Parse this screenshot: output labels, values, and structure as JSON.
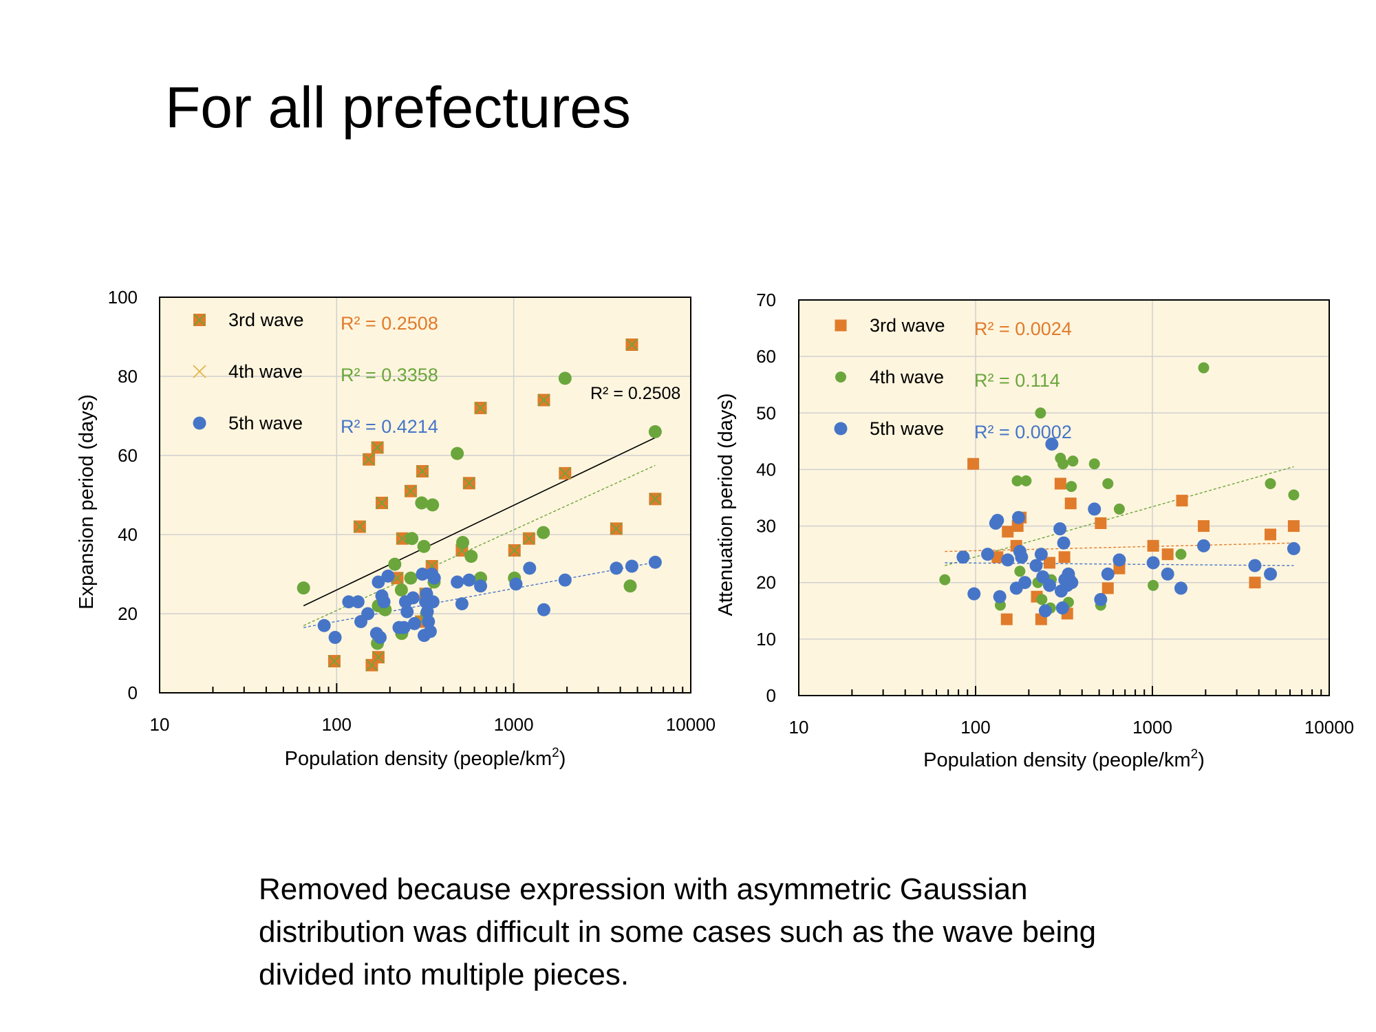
{
  "slide": {
    "title": "For all prefectures",
    "note_lines": [
      "Removed because expression with asymmetric Gaussian",
      "distribution was difficult in some cases such as the wave being",
      "divided into multiple pieces."
    ]
  },
  "colors": {
    "plot_bg": "#fef5de",
    "wave3": "#e07b2b",
    "wave4": "#6aa63c",
    "wave5": "#4675c8",
    "grid": "#d0d0d0",
    "axis": "#000000"
  },
  "chart_data": [
    {
      "type": "scatter",
      "xscale": "log",
      "xlim": [
        10,
        10000
      ],
      "ylim": [
        0,
        100
      ],
      "yticks": [
        0,
        20,
        40,
        60,
        80,
        100
      ],
      "xticks": [
        10,
        100,
        1000,
        10000
      ],
      "xtick_labels": [
        "10",
        "100",
        "1000",
        "10000"
      ],
      "xlabel": "Population density (people/km",
      "xlabel_sup": "2",
      "xlabel_end": ")",
      "ylabel": "Expansion period (days)",
      "grid": true,
      "legend_position": "top-left",
      "series": [
        {
          "name": "3rd wave",
          "marker": "square-x",
          "color": "#e07b2b",
          "r2_label": "R² = 0.2508",
          "points": [
            [
              97,
              8
            ],
            [
              135,
              42
            ],
            [
              152,
              59
            ],
            [
              158,
              7
            ],
            [
              170,
              62
            ],
            [
              172,
              9
            ],
            [
              180,
              48
            ],
            [
              220,
              29
            ],
            [
              235,
              39
            ],
            [
              262,
              51
            ],
            [
              300,
              18
            ],
            [
              305,
              56
            ],
            [
              318,
              25
            ],
            [
              345,
              32
            ],
            [
              510,
              36
            ],
            [
              560,
              53
            ],
            [
              650,
              72
            ],
            [
              1010,
              36
            ],
            [
              1220,
              39
            ],
            [
              1480,
              74
            ],
            [
              1950,
              55.5
            ],
            [
              3800,
              41.5
            ],
            [
              4650,
              88
            ],
            [
              6300,
              49
            ]
          ]
        },
        {
          "name": "4th wave",
          "marker": "x",
          "color": "#6aa63c",
          "r2_label": "R² = 0.3358",
          "points": [
            [
              65,
              26.5
            ],
            [
              170,
              12.5
            ],
            [
              172,
              22
            ],
            [
              188,
              21
            ],
            [
              213,
              32.5
            ],
            [
              232,
              26
            ],
            [
              233,
              15
            ],
            [
              262,
              29
            ],
            [
              266,
              39
            ],
            [
              302,
              48
            ],
            [
              311,
              37
            ],
            [
              322,
              20
            ],
            [
              348,
              47.5
            ],
            [
              355,
              28
            ],
            [
              480,
              60.5
            ],
            [
              515,
              38
            ],
            [
              575,
              34.5
            ],
            [
              650,
              29
            ],
            [
              1010,
              29
            ],
            [
              1470,
              40.5
            ],
            [
              1950,
              79.5
            ],
            [
              4550,
              27
            ],
            [
              6300,
              66
            ]
          ]
        },
        {
          "name": "5th wave",
          "marker": "circle",
          "color": "#4675c8",
          "r2_label": "R² = 0.4214",
          "points": [
            [
              85,
              17
            ],
            [
              98,
              14
            ],
            [
              117,
              23
            ],
            [
              132,
              23
            ],
            [
              137,
              18
            ],
            [
              150,
              20
            ],
            [
              168,
              15
            ],
            [
              172,
              28
            ],
            [
              176,
              14
            ],
            [
              180,
              24.5
            ],
            [
              185,
              23
            ],
            [
              195,
              29.5
            ],
            [
              225,
              16.5
            ],
            [
              240,
              16.5
            ],
            [
              245,
              23
            ],
            [
              250,
              20.5
            ],
            [
              270,
              24
            ],
            [
              275,
              17.5
            ],
            [
              305,
              30
            ],
            [
              312,
              14.5
            ],
            [
              318,
              23
            ],
            [
              322,
              25
            ],
            [
              325,
              20.5
            ],
            [
              330,
              18
            ],
            [
              338,
              15.5
            ],
            [
              345,
              30
            ],
            [
              350,
              23
            ],
            [
              356,
              29
            ],
            [
              480,
              28
            ],
            [
              510,
              22.5
            ],
            [
              560,
              28.5
            ],
            [
              650,
              27
            ],
            [
              1030,
              27.5
            ],
            [
              1230,
              31.5
            ],
            [
              1480,
              21
            ],
            [
              1950,
              28.5
            ],
            [
              3800,
              31.5
            ],
            [
              4650,
              32
            ],
            [
              6300,
              33
            ]
          ]
        }
      ],
      "trendlines": [
        {
          "series": "3rd wave",
          "color": "#000000",
          "style": "solid",
          "from": [
            65,
            22
          ],
          "to": [
            6300,
            64.5
          ],
          "label": "R² = 0.2508"
        },
        {
          "series": "4th wave",
          "color": "#6aa63c",
          "style": "dashed",
          "from": [
            65,
            17
          ],
          "to": [
            6300,
            57.5
          ]
        },
        {
          "series": "5th wave",
          "color": "#4675c8",
          "style": "dashed",
          "from": [
            65,
            16.5
          ],
          "to": [
            6300,
            33
          ]
        }
      ]
    },
    {
      "type": "scatter",
      "xscale": "log",
      "xlim": [
        10,
        10000
      ],
      "ylim": [
        0,
        70
      ],
      "yticks": [
        0,
        10,
        20,
        30,
        40,
        50,
        60,
        70
      ],
      "xticks": [
        10,
        100,
        1000,
        10000
      ],
      "xtick_labels": [
        "10",
        "100",
        "1000",
        "10000"
      ],
      "xlabel": "Population density (people/km",
      "xlabel_sup": "2",
      "xlabel_end": ")",
      "ylabel": "Attenuation period (days)",
      "grid": true,
      "legend_position": "top-left",
      "series": [
        {
          "name": "3rd wave",
          "marker": "square",
          "color": "#e07b2b",
          "r2_label": "R² = 0.0024",
          "points": [
            [
              97,
              41
            ],
            [
              133,
              24.5
            ],
            [
              150,
              13.5
            ],
            [
              152,
              29
            ],
            [
              170,
              26.5
            ],
            [
              173,
              30
            ],
            [
              180,
              31.5
            ],
            [
              222,
              17.5
            ],
            [
              235,
              13.5
            ],
            [
              262,
              23.5
            ],
            [
              302,
              37.5
            ],
            [
              318,
              24.5
            ],
            [
              330,
              14.5
            ],
            [
              345,
              34
            ],
            [
              510,
              30.5
            ],
            [
              560,
              19
            ],
            [
              650,
              22.5
            ],
            [
              1010,
              26.5
            ],
            [
              1220,
              25
            ],
            [
              1470,
              34.5
            ],
            [
              1950,
              30
            ],
            [
              3800,
              20
            ],
            [
              4650,
              28.5
            ],
            [
              6300,
              30
            ]
          ]
        },
        {
          "name": "4th wave",
          "marker": "circle",
          "color": "#6aa63c",
          "r2_label": "R² = 0.114",
          "points": [
            [
              67,
              20.5
            ],
            [
              138,
              16
            ],
            [
              172,
              38
            ],
            [
              178,
              22
            ],
            [
              193,
              38
            ],
            [
              225,
              20
            ],
            [
              233,
              50
            ],
            [
              237,
              17
            ],
            [
              265,
              15.5
            ],
            [
              268,
              20.5
            ],
            [
              302,
              42
            ],
            [
              312,
              41
            ],
            [
              335,
              16.5
            ],
            [
              348,
              37
            ],
            [
              355,
              41.5
            ],
            [
              470,
              41
            ],
            [
              510,
              16
            ],
            [
              560,
              37.5
            ],
            [
              650,
              33
            ],
            [
              1010,
              19.5
            ],
            [
              1450,
              25
            ],
            [
              1950,
              58
            ],
            [
              4650,
              37.5
            ],
            [
              6300,
              35.5
            ]
          ]
        },
        {
          "name": "5th wave",
          "marker": "circle",
          "color": "#4675c8",
          "r2_label": "R² = 0.0002",
          "points": [
            [
              85,
              24.5
            ],
            [
              98,
              18
            ],
            [
              117,
              25
            ],
            [
              130,
              30.5
            ],
            [
              133,
              31
            ],
            [
              137,
              17.5
            ],
            [
              152,
              24
            ],
            [
              170,
              19
            ],
            [
              175,
              31.5
            ],
            [
              178,
              25.5
            ],
            [
              182,
              24.5
            ],
            [
              190,
              20
            ],
            [
              220,
              23
            ],
            [
              235,
              25
            ],
            [
              240,
              21
            ],
            [
              248,
              15
            ],
            [
              262,
              19.5
            ],
            [
              270,
              44.5
            ],
            [
              300,
              29.5
            ],
            [
              305,
              18.5
            ],
            [
              310,
              15.5
            ],
            [
              315,
              27
            ],
            [
              320,
              20.5
            ],
            [
              330,
              19.5
            ],
            [
              335,
              21.5
            ],
            [
              340,
              20.5
            ],
            [
              350,
              20
            ],
            [
              470,
              33
            ],
            [
              510,
              17
            ],
            [
              560,
              21.5
            ],
            [
              650,
              24
            ],
            [
              1010,
              23.5
            ],
            [
              1220,
              21.5
            ],
            [
              1450,
              19
            ],
            [
              1950,
              26.5
            ],
            [
              3800,
              23
            ],
            [
              4650,
              21.5
            ],
            [
              6300,
              26
            ]
          ]
        }
      ],
      "trendlines": [
        {
          "series": "3rd wave",
          "color": "#e07b2b",
          "style": "dashed",
          "from": [
            67,
            25.5
          ],
          "to": [
            6300,
            27
          ]
        },
        {
          "series": "4th wave",
          "color": "#6aa63c",
          "style": "dashed",
          "from": [
            67,
            23
          ],
          "to": [
            6300,
            40.5
          ]
        },
        {
          "series": "5th wave",
          "color": "#4675c8",
          "style": "dashed",
          "from": [
            67,
            23.5
          ],
          "to": [
            6300,
            23
          ]
        }
      ]
    }
  ]
}
